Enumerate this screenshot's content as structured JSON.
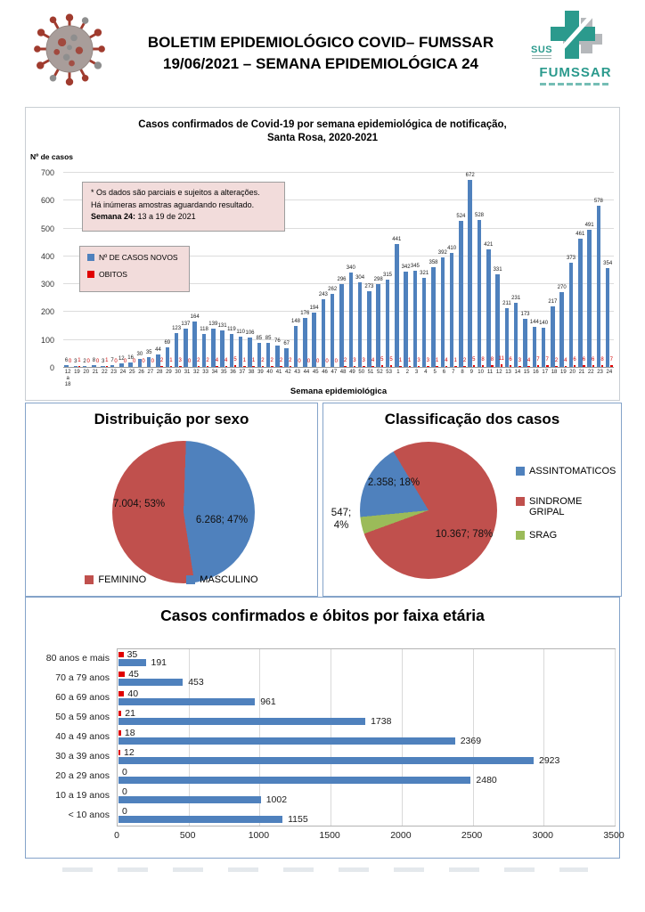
{
  "header": {
    "title_line1": "BOLETIM EPIDEMIOLÓGICO COVID– FUMSSAR",
    "title_line2": "19/06/2021 – SEMANA EPIDEMIOLÓGICA 24",
    "logo_sus": "SUS",
    "logo_name": "FUMSSAR",
    "logo_color": "#2b9a8d"
  },
  "chart_data": [
    {
      "type": "bar",
      "title": "Casos confirmados de Covid-19 por semana epidemiológica de notificação, Santa Rosa, 2020-2021",
      "title_lines": [
        "Casos confirmados de Covid-19 por semana epidemiológica de notificação,",
        "Santa Rosa, 2020-2021"
      ],
      "ylabel": "Nº de casos",
      "xlabel": "Semana epidemiológica",
      "ylim": [
        0,
        700
      ],
      "yticks": [
        0,
        100,
        200,
        300,
        400,
        500,
        600,
        700
      ],
      "grid": true,
      "legend_position": "inside-left",
      "categories": [
        "12 a 18",
        "19",
        "20",
        "21",
        "22",
        "23",
        "24",
        "25",
        "26",
        "27",
        "28",
        "29",
        "30",
        "31",
        "32",
        "33",
        "34",
        "35",
        "36",
        "37",
        "38",
        "39",
        "40",
        "41",
        "42",
        "43",
        "44",
        "45",
        "46",
        "47",
        "48",
        "49",
        "50",
        "51",
        "52",
        "53",
        "1",
        "2",
        "3",
        "4",
        "5",
        "6",
        "7",
        "8",
        "9",
        "10",
        "11",
        "12",
        "13",
        "14",
        "15",
        "16",
        "17",
        "18",
        "19",
        "20",
        "21",
        "22",
        "23",
        "24"
      ],
      "series": [
        {
          "name": "Nº DE CASOS NOVOS",
          "color": "#4f81bd",
          "values": [
            6,
            3,
            2,
            8,
            3,
            7,
            12,
            16,
            30,
            35,
            44,
            69,
            123,
            137,
            164,
            118,
            139,
            131,
            119,
            110,
            106,
            85,
            85,
            76,
            67,
            148,
            176,
            194,
            243,
            262,
            296,
            340,
            304,
            273,
            298,
            315,
            441,
            342,
            345,
            321,
            358,
            392,
            410,
            524,
            672,
            528,
            421,
            331,
            211,
            231,
            173,
            144,
            140,
            217,
            270,
            373,
            461,
            491,
            578,
            354
          ]
        },
        {
          "name": "OBITOS",
          "color": "#e00000",
          "values": [
            0,
            1,
            0,
            0,
            1,
            0,
            0,
            0,
            0,
            0,
            2,
            1,
            3,
            0,
            2,
            2,
            4,
            4,
            5,
            1,
            1,
            2,
            2,
            2,
            2,
            0,
            0,
            0,
            0,
            0,
            2,
            3,
            3,
            4,
            5,
            5,
            1,
            1,
            3,
            3,
            1,
            4,
            1,
            2,
            5,
            8,
            8,
            11,
            6,
            3,
            4,
            7,
            7,
            2,
            4,
            6,
            6,
            6,
            8,
            7
          ]
        }
      ],
      "note": {
        "line1": "* Os dados são parciais e sujeitos a alterações.",
        "line2": "Há inúmeras amostras aguardando resultado.",
        "line3_bold": "Semana 24:",
        "line3_rest": " 13 a 19 de 2021"
      }
    },
    {
      "type": "pie",
      "title": "Distribuição por sexo",
      "slices": [
        {
          "label": "FEMININO",
          "value": 7004,
          "pct": 53,
          "value_label": "7.004; 53%",
          "color": "#c0504d"
        },
        {
          "label": "MASCULINO",
          "value": 6268,
          "pct": 47,
          "value_label": "6.268; 47%",
          "color": "#4f81bd"
        }
      ],
      "legend_position": "bottom"
    },
    {
      "type": "pie",
      "title": "Classificação dos casos",
      "slices": [
        {
          "label": "ASSINTOMATICOS",
          "value": 2358,
          "pct": 18,
          "value_label": "2.358; 18%",
          "color": "#4f81bd"
        },
        {
          "label": "SINDROME GRIPAL",
          "value": 10367,
          "pct": 78,
          "value_label": "10.367; 78%",
          "color": "#c0504d"
        },
        {
          "label": "SRAG",
          "value": 547,
          "pct": 4,
          "value_label": "547; 4%",
          "color": "#9bbb59"
        }
      ],
      "legend_position": "right"
    },
    {
      "type": "bar",
      "orientation": "horizontal",
      "title": "Casos confirmados e óbitos  por faixa etária",
      "xlim": [
        0,
        3500
      ],
      "xticks": [
        0,
        500,
        1000,
        1500,
        2000,
        2500,
        3000,
        3500
      ],
      "grid": true,
      "categories": [
        "80 anos e mais",
        "70 a 79 anos",
        "60 a 69 anos",
        "50 a 59 anos",
        "40 a 49 anos",
        "30 a 39 anos",
        "20 a 29 anos",
        "10 a 19 anos",
        "< 10 anos"
      ],
      "series": [
        {
          "name": "óbitos",
          "color": "#e00000",
          "values": [
            35,
            45,
            40,
            21,
            18,
            12,
            0,
            0,
            0
          ]
        },
        {
          "name": "casos confirmados",
          "color": "#4f81bd",
          "values": [
            191,
            453,
            961,
            1738,
            2369,
            2923,
            2480,
            1002,
            1155
          ]
        }
      ]
    }
  ]
}
